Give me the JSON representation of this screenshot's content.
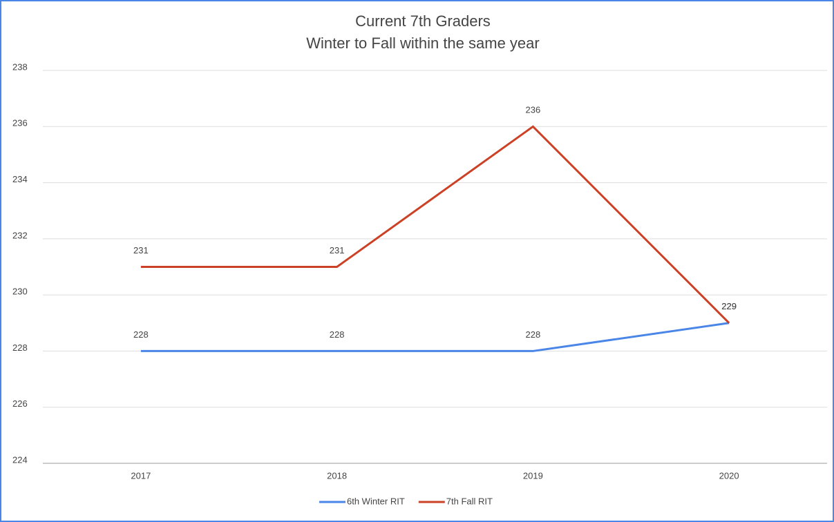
{
  "chart_data": {
    "type": "line",
    "title": "Current 7th Graders",
    "subtitle": "Winter to Fall within the same year",
    "categories": [
      "2017",
      "2018",
      "2019",
      "2020"
    ],
    "series": [
      {
        "name": "6th Winter RIT",
        "color": "#4a86e8",
        "values": [
          228,
          228,
          228,
          229
        ]
      },
      {
        "name": "7th Fall RIT",
        "color": "#cc4125",
        "values": [
          231,
          231,
          236,
          229
        ]
      }
    ],
    "ylim": [
      224,
      238
    ],
    "yticks": [
      224,
      226,
      228,
      230,
      232,
      234,
      236,
      238
    ],
    "grid": true,
    "legend": "bottom"
  }
}
